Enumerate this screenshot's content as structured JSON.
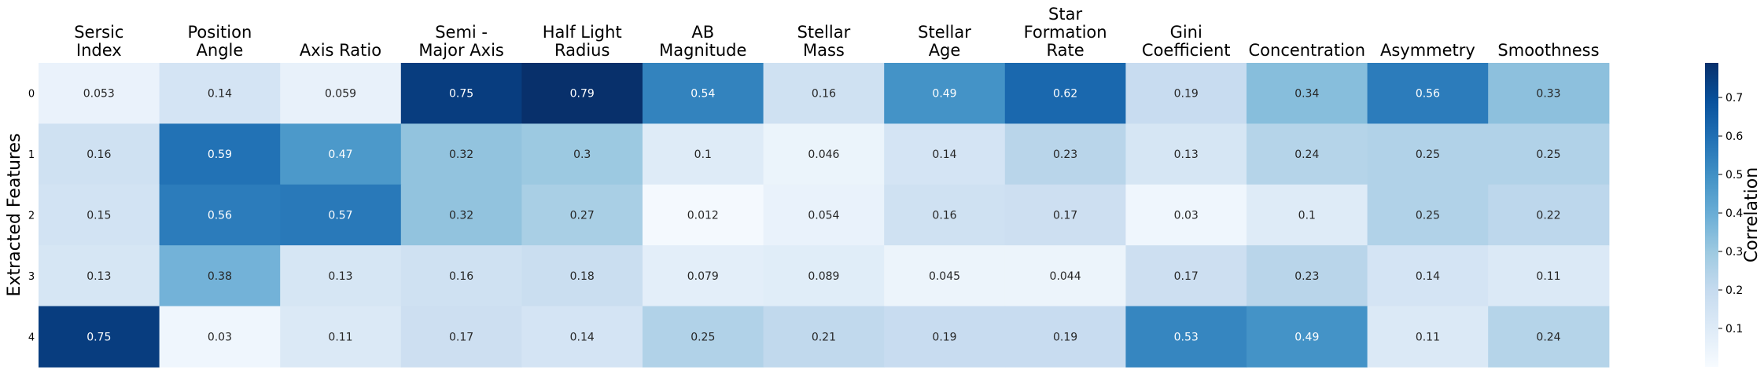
{
  "chart_data": {
    "type": "heatmap",
    "title": "",
    "columns": [
      [
        "Sersic",
        "Index"
      ],
      [
        "Position",
        "Angle"
      ],
      [
        "Axis Ratio"
      ],
      [
        "Semi -",
        "Major Axis"
      ],
      [
        "Half Light",
        "Radius"
      ],
      [
        "AB",
        "Magnitude"
      ],
      [
        "Stellar",
        "Mass"
      ],
      [
        "Stellar",
        "Age"
      ],
      [
        "Star",
        "Formation",
        "Rate"
      ],
      [
        "Gini",
        "Coefficient"
      ],
      [
        "Concentration"
      ],
      [
        "Asymmetry"
      ],
      [
        "Smoothness"
      ]
    ],
    "rows": [
      "0",
      "1",
      "2",
      "3",
      "4"
    ],
    "values": [
      [
        0.053,
        0.14,
        0.059,
        0.75,
        0.79,
        0.54,
        0.16,
        0.49,
        0.62,
        0.19,
        0.34,
        0.56,
        0.33
      ],
      [
        0.16,
        0.59,
        0.47,
        0.32,
        0.3,
        0.1,
        0.046,
        0.14,
        0.23,
        0.13,
        0.24,
        0.25,
        0.25
      ],
      [
        0.15,
        0.56,
        0.57,
        0.32,
        0.27,
        0.012,
        0.054,
        0.16,
        0.17,
        0.03,
        0.1,
        0.25,
        0.22
      ],
      [
        0.13,
        0.38,
        0.13,
        0.16,
        0.18,
        0.079,
        0.089,
        0.045,
        0.044,
        0.17,
        0.23,
        0.14,
        0.11
      ],
      [
        0.75,
        0.03,
        0.11,
        0.17,
        0.14,
        0.25,
        0.21,
        0.19,
        0.19,
        0.53,
        0.49,
        0.11,
        0.24
      ]
    ],
    "ylabel": "Extracted Features",
    "xlabel": "",
    "colorbar": {
      "label": "Correlation",
      "range": [
        0.0,
        0.79
      ],
      "ticks": [
        0.1,
        0.2,
        0.3,
        0.4,
        0.5,
        0.6,
        0.7
      ],
      "colormap": "Blues"
    }
  }
}
